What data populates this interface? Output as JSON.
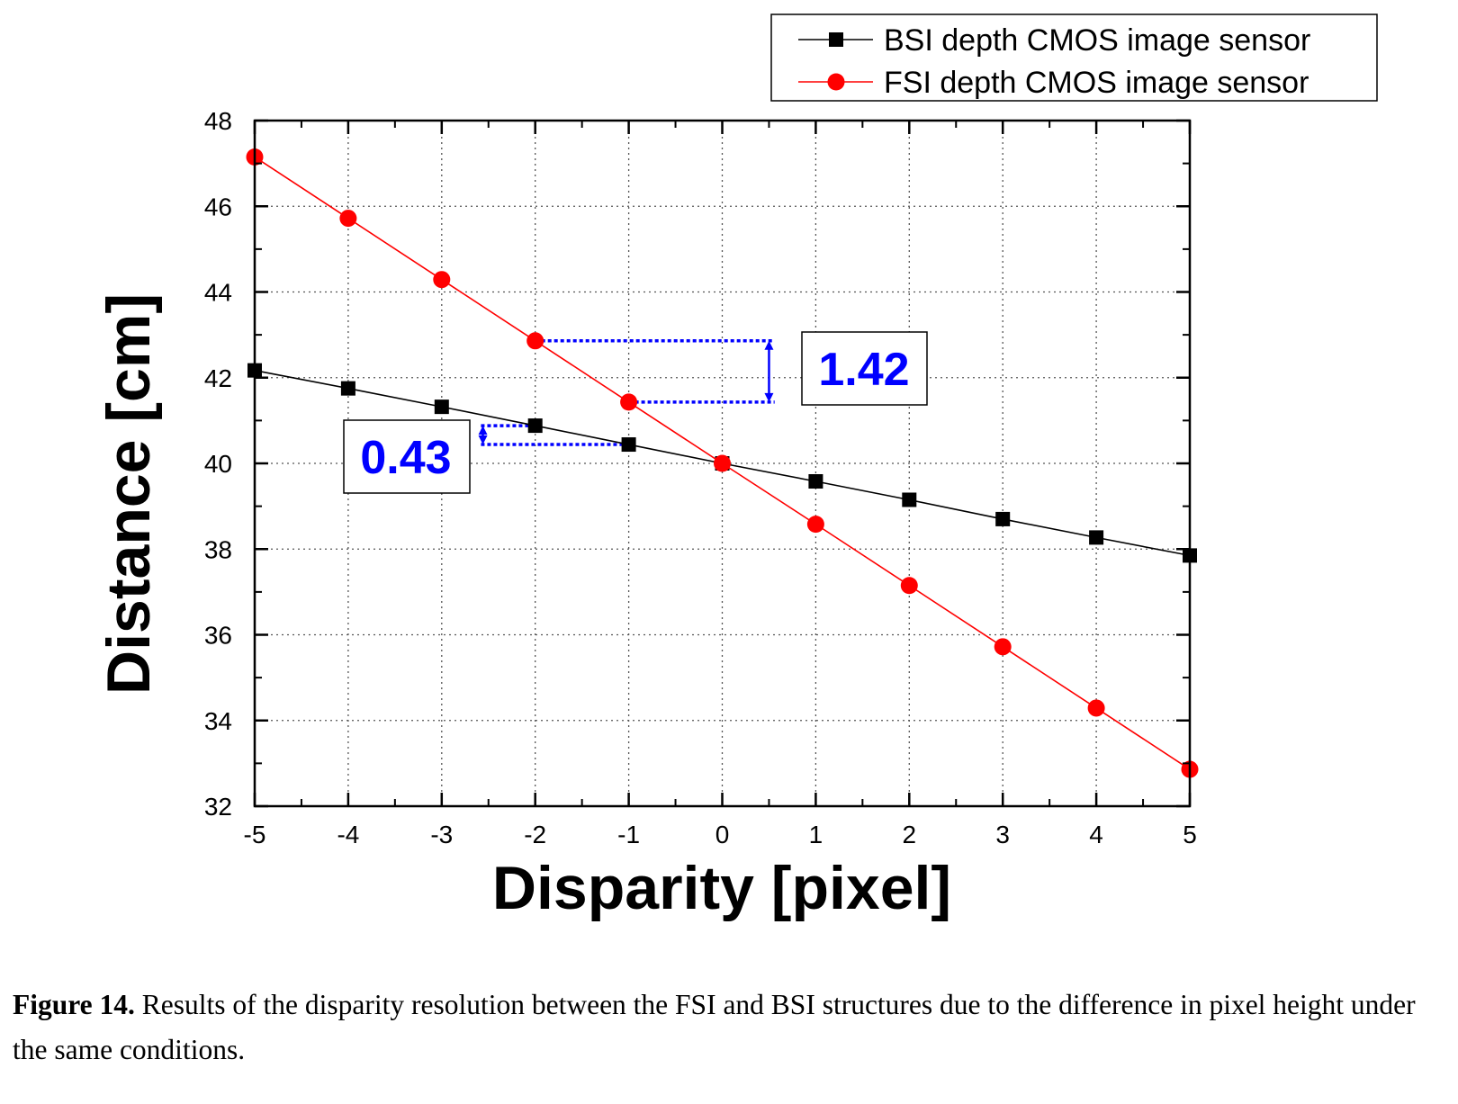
{
  "chart_data": {
    "type": "line",
    "xlabel": "Disparity [pixel]",
    "ylabel": "Distance [cm]",
    "xlim": [
      -5,
      5
    ],
    "ylim": [
      32,
      48
    ],
    "x": [
      -5,
      -4,
      -3,
      -2,
      -1,
      0,
      1,
      2,
      3,
      4,
      5
    ],
    "xticks": [
      "-5",
      "-4",
      "-3",
      "-2",
      "-1",
      "0",
      "1",
      "2",
      "3",
      "4",
      "5"
    ],
    "yticks": [
      "32",
      "34",
      "36",
      "38",
      "40",
      "42",
      "44",
      "46",
      "48"
    ],
    "grid": true,
    "legend_position": "top-right, outside plot",
    "series": [
      {
        "name": "BSI depth CMOS image sensor",
        "color": "#000000",
        "marker": "square",
        "values": [
          42.17,
          41.75,
          41.32,
          40.88,
          40.44,
          40.0,
          39.58,
          39.15,
          38.7,
          38.27,
          37.85
        ]
      },
      {
        "name": "FSI depth CMOS image sensor",
        "color": "#ff0000",
        "marker": "circle",
        "values": [
          47.15,
          45.72,
          44.29,
          42.86,
          41.43,
          40.0,
          38.58,
          37.15,
          35.72,
          34.29,
          32.86
        ]
      }
    ],
    "annotations": [
      {
        "text": "1.42",
        "color": "#0000ff",
        "y_from": 42.86,
        "y_to": 41.43
      },
      {
        "text": "0.43",
        "color": "#0000ff",
        "y_from": 40.88,
        "y_to": 40.44
      }
    ]
  },
  "caption": {
    "label": "Figure 14.",
    "text": " Results of the disparity resolution between the FSI and BSI structures due to the difference in pixel height under the same conditions."
  }
}
